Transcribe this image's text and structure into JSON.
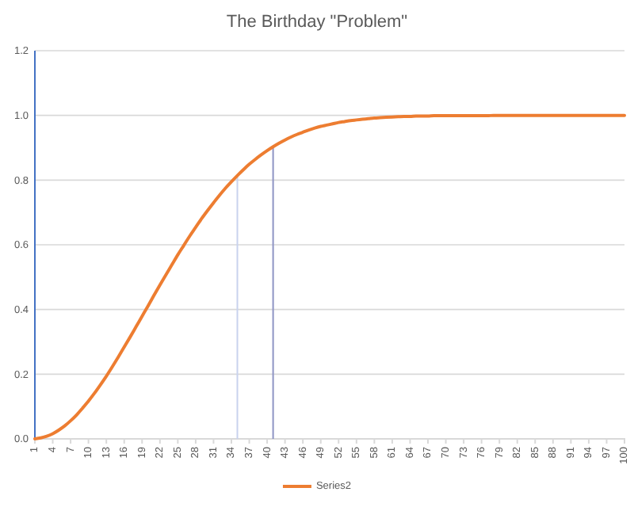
{
  "chart_data": {
    "type": "line",
    "title": "The Birthday \"Problem\"",
    "x": [
      1,
      2,
      3,
      4,
      5,
      6,
      7,
      8,
      9,
      10,
      11,
      12,
      13,
      14,
      15,
      16,
      17,
      18,
      19,
      20,
      21,
      22,
      23,
      24,
      25,
      26,
      27,
      28,
      29,
      30,
      31,
      32,
      33,
      34,
      35,
      36,
      37,
      38,
      39,
      40,
      41,
      42,
      43,
      44,
      45,
      46,
      47,
      48,
      49,
      50,
      51,
      52,
      53,
      54,
      55,
      56,
      57,
      58,
      59,
      60,
      61,
      62,
      63,
      64,
      65,
      66,
      67,
      68,
      69,
      70,
      71,
      72,
      73,
      74,
      75,
      76,
      77,
      78,
      79,
      80,
      81,
      82,
      83,
      84,
      85,
      86,
      87,
      88,
      89,
      90,
      91,
      92,
      93,
      94,
      95,
      96,
      97,
      98,
      99,
      100
    ],
    "series": [
      {
        "name": "Series2",
        "color": "#ed7d31",
        "values": [
          0,
          0.003,
          0.008,
          0.016,
          0.027,
          0.04,
          0.056,
          0.074,
          0.095,
          0.117,
          0.141,
          0.167,
          0.194,
          0.223,
          0.253,
          0.284,
          0.315,
          0.347,
          0.379,
          0.411,
          0.444,
          0.476,
          0.507,
          0.538,
          0.569,
          0.598,
          0.627,
          0.654,
          0.681,
          0.706,
          0.73,
          0.753,
          0.775,
          0.795,
          0.814,
          0.832,
          0.849,
          0.864,
          0.878,
          0.891,
          0.903,
          0.914,
          0.924,
          0.933,
          0.941,
          0.948,
          0.955,
          0.961,
          0.966,
          0.97,
          0.974,
          0.978,
          0.981,
          0.984,
          0.986,
          0.988,
          0.99,
          0.992,
          0.993,
          0.994,
          0.995,
          0.996,
          0.997,
          0.997,
          0.998,
          0.998,
          0.998,
          0.999,
          0.999,
          0.999,
          0.999,
          0.999,
          0.999,
          0.999,
          0.999,
          0.999,
          0.999,
          1,
          1,
          1,
          1,
          1,
          1,
          1,
          1,
          1,
          1,
          1,
          1,
          1,
          1,
          1,
          1,
          1,
          1,
          1,
          1,
          1,
          1,
          1
        ]
      }
    ],
    "xlim": [
      1,
      100
    ],
    "xticks": [
      1,
      4,
      7,
      10,
      13,
      16,
      19,
      22,
      25,
      28,
      31,
      34,
      37,
      40,
      43,
      46,
      49,
      52,
      55,
      58,
      61,
      64,
      67,
      70,
      73,
      76,
      79,
      82,
      85,
      88,
      91,
      94,
      97,
      100
    ],
    "ylim": [
      0,
      1.2
    ],
    "yticks": [
      {
        "value": 0,
        "label": "0.0"
      },
      0.2,
      0.4,
      0.6,
      0.8,
      {
        "value": 1,
        "label": "1.0"
      },
      1.2
    ],
    "ref_lines": [
      {
        "axis": "x",
        "value": 35,
        "color": "#c9d3ee"
      },
      {
        "axis": "x",
        "value": 41,
        "color": "#8e94c4"
      }
    ],
    "grid": "y",
    "legend": "bottom",
    "marker": "none",
    "line_style": "solid"
  }
}
